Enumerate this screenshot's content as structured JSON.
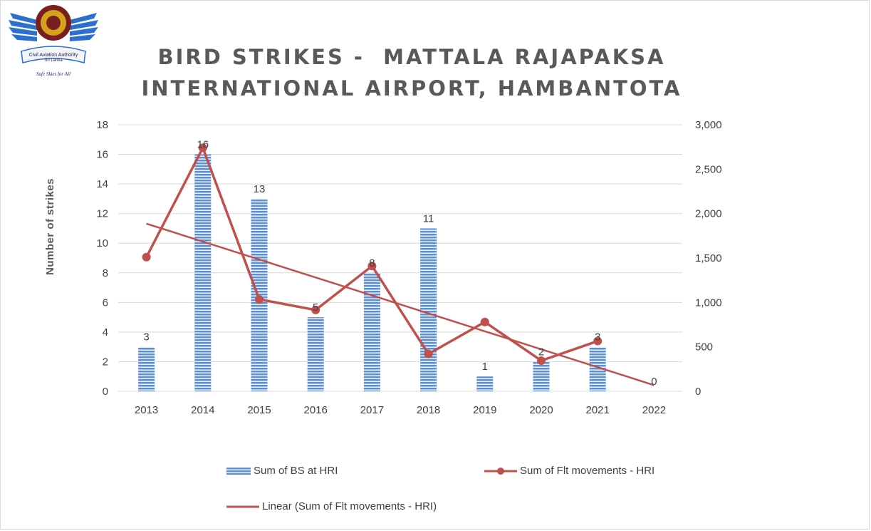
{
  "logo": {
    "org_text": "Civil Aviation Authority Sri Lanka",
    "motto": "Safe Skies for All"
  },
  "title": {
    "line1": "BIRD STRIKES -  MATTALA RAJAPAKSA",
    "line2": "INTERNATIONAL AIRPORT, HAMBANTOTA"
  },
  "colors": {
    "bar": "#5b8fd0",
    "bar_stripe": "#ffffff",
    "line": "#c0504d",
    "grid": "#d9d9d9"
  },
  "legend": {
    "bars": "Sum of BS at HRI",
    "line": "Sum of Flt movements - HRI",
    "trend": "Linear (Sum of Flt movements - HRI)"
  },
  "chart_data": {
    "type": "bar",
    "categories": [
      "2013",
      "2014",
      "2015",
      "2016",
      "2017",
      "2018",
      "2019",
      "2020",
      "2021",
      "2022"
    ],
    "ylabel": "Number of strikes",
    "ylim": [
      0,
      18
    ],
    "yticks": [
      "0",
      "2",
      "4",
      "6",
      "8",
      "10",
      "12",
      "14",
      "16",
      "18"
    ],
    "y2lim": [
      0,
      3000
    ],
    "y2ticks": [
      "0",
      "500",
      "1,000",
      "1,500",
      "2,000",
      "2,500",
      "3,000"
    ],
    "grid": true,
    "legend_position": "bottom",
    "series": [
      {
        "name": "Sum of BS at HRI",
        "type": "bar",
        "axis": "left",
        "values": [
          3,
          16,
          13,
          5,
          8,
          11,
          1,
          2,
          3,
          0
        ],
        "data_labels": [
          "3",
          "16",
          "13",
          "5",
          "8",
          "11",
          "1",
          "2",
          "3",
          "0"
        ]
      },
      {
        "name": "Sum of Flt movements - HRI",
        "type": "line",
        "axis": "right",
        "marker": "circle",
        "values": [
          1510,
          2740,
          1035,
          915,
          1410,
          420,
          780,
          345,
          565,
          null
        ]
      },
      {
        "name": "Linear (Sum of Flt movements - HRI)",
        "type": "trendline",
        "axis": "right",
        "values": [
          1887,
          1685,
          1483,
          1281,
          1079,
          877,
          675,
          473,
          271,
          69
        ]
      }
    ]
  }
}
